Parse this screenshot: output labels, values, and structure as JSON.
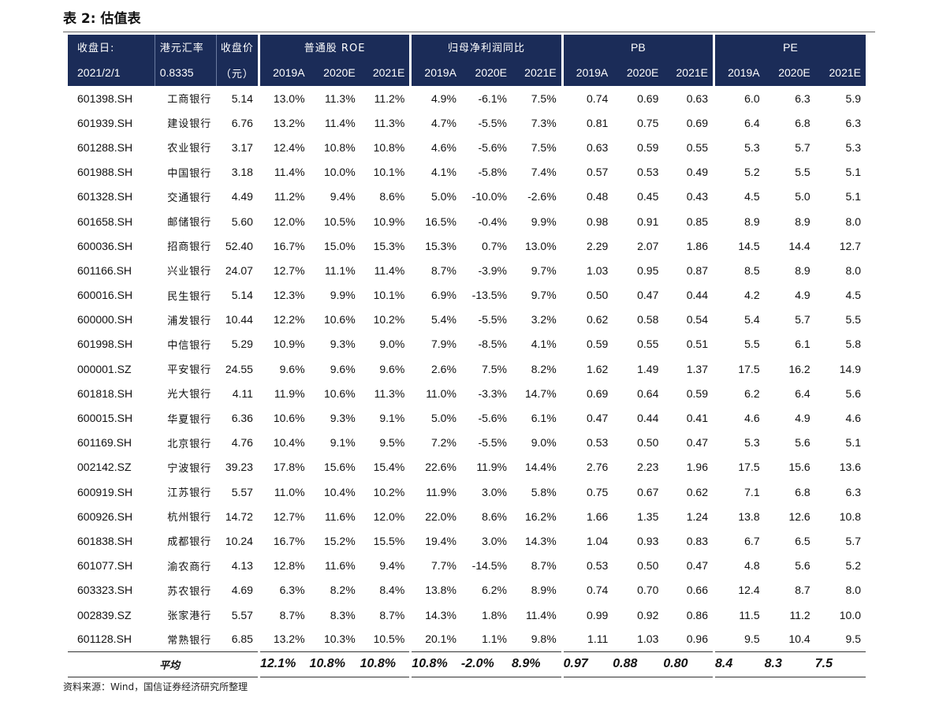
{
  "title": "表 2: 估值表",
  "header": {
    "row1": {
      "code": "收盘日:",
      "name": "港元汇率",
      "price": "收盘价",
      "roe": "普通股 ROE",
      "profit": "归母净利润同比",
      "pb": "PB",
      "pe": "PE"
    },
    "row2": {
      "date": "2021/2/1",
      "rate": "0.8335",
      "unit": "（元）",
      "years": [
        "2019A",
        "2020E",
        "2021E",
        "2019A",
        "2020E",
        "2021E",
        "2019A",
        "2020E",
        "2021E",
        "2019A",
        "2020E",
        "2021E"
      ]
    }
  },
  "rows": [
    [
      "601398.SH",
      "工商银行",
      "5.14",
      "13.0%",
      "11.3%",
      "11.2%",
      "4.9%",
      "-6.1%",
      "7.5%",
      "0.74",
      "0.69",
      "0.63",
      "6.0",
      "6.3",
      "5.9"
    ],
    [
      "601939.SH",
      "建设银行",
      "6.76",
      "13.2%",
      "11.4%",
      "11.3%",
      "4.7%",
      "-5.5%",
      "7.3%",
      "0.81",
      "0.75",
      "0.69",
      "6.4",
      "6.8",
      "6.3"
    ],
    [
      "601288.SH",
      "农业银行",
      "3.17",
      "12.4%",
      "10.8%",
      "10.8%",
      "4.6%",
      "-5.6%",
      "7.5%",
      "0.63",
      "0.59",
      "0.55",
      "5.3",
      "5.7",
      "5.3"
    ],
    [
      "601988.SH",
      "中国银行",
      "3.18",
      "11.4%",
      "10.0%",
      "10.1%",
      "4.1%",
      "-5.8%",
      "7.4%",
      "0.57",
      "0.53",
      "0.49",
      "5.2",
      "5.5",
      "5.1"
    ],
    [
      "601328.SH",
      "交通银行",
      "4.49",
      "11.2%",
      "9.4%",
      "8.6%",
      "5.0%",
      "-10.0%",
      "-2.6%",
      "0.48",
      "0.45",
      "0.43",
      "4.5",
      "5.0",
      "5.1"
    ],
    [
      "601658.SH",
      "邮储银行",
      "5.60",
      "12.0%",
      "10.5%",
      "10.9%",
      "16.5%",
      "-0.4%",
      "9.9%",
      "0.98",
      "0.91",
      "0.85",
      "8.9",
      "8.9",
      "8.0"
    ],
    [
      "600036.SH",
      "招商银行",
      "52.40",
      "16.7%",
      "15.0%",
      "15.3%",
      "15.3%",
      "0.7%",
      "13.0%",
      "2.29",
      "2.07",
      "1.86",
      "14.5",
      "14.4",
      "12.7"
    ],
    [
      "601166.SH",
      "兴业银行",
      "24.07",
      "12.7%",
      "11.1%",
      "11.4%",
      "8.7%",
      "-3.9%",
      "9.7%",
      "1.03",
      "0.95",
      "0.87",
      "8.5",
      "8.9",
      "8.0"
    ],
    [
      "600016.SH",
      "民生银行",
      "5.14",
      "12.3%",
      "9.9%",
      "10.1%",
      "6.9%",
      "-13.5%",
      "9.7%",
      "0.50",
      "0.47",
      "0.44",
      "4.2",
      "4.9",
      "4.5"
    ],
    [
      "600000.SH",
      "浦发银行",
      "10.44",
      "12.2%",
      "10.6%",
      "10.2%",
      "5.4%",
      "-5.5%",
      "3.2%",
      "0.62",
      "0.58",
      "0.54",
      "5.4",
      "5.7",
      "5.5"
    ],
    [
      "601998.SH",
      "中信银行",
      "5.29",
      "10.9%",
      "9.3%",
      "9.0%",
      "7.9%",
      "-8.5%",
      "4.1%",
      "0.59",
      "0.55",
      "0.51",
      "5.5",
      "6.1",
      "5.8"
    ],
    [
      "000001.SZ",
      "平安银行",
      "24.55",
      "9.6%",
      "9.6%",
      "9.6%",
      "2.6%",
      "7.5%",
      "8.2%",
      "1.62",
      "1.49",
      "1.37",
      "17.5",
      "16.2",
      "14.9"
    ],
    [
      "601818.SH",
      "光大银行",
      "4.11",
      "11.9%",
      "10.6%",
      "11.3%",
      "11.0%",
      "-3.3%",
      "14.7%",
      "0.69",
      "0.64",
      "0.59",
      "6.2",
      "6.4",
      "5.6"
    ],
    [
      "600015.SH",
      "华夏银行",
      "6.36",
      "10.6%",
      "9.3%",
      "9.1%",
      "5.0%",
      "-5.6%",
      "6.1%",
      "0.47",
      "0.44",
      "0.41",
      "4.6",
      "4.9",
      "4.6"
    ],
    [
      "601169.SH",
      "北京银行",
      "4.76",
      "10.4%",
      "9.1%",
      "9.5%",
      "7.2%",
      "-5.5%",
      "9.0%",
      "0.53",
      "0.50",
      "0.47",
      "5.3",
      "5.6",
      "5.1"
    ],
    [
      "002142.SZ",
      "宁波银行",
      "39.23",
      "17.8%",
      "15.6%",
      "15.4%",
      "22.6%",
      "11.9%",
      "14.4%",
      "2.76",
      "2.23",
      "1.96",
      "17.5",
      "15.6",
      "13.6"
    ],
    [
      "600919.SH",
      "江苏银行",
      "5.57",
      "11.0%",
      "10.4%",
      "10.2%",
      "11.9%",
      "3.0%",
      "5.8%",
      "0.75",
      "0.67",
      "0.62",
      "7.1",
      "6.8",
      "6.3"
    ],
    [
      "600926.SH",
      "杭州银行",
      "14.72",
      "12.7%",
      "11.6%",
      "12.0%",
      "22.0%",
      "8.6%",
      "16.2%",
      "1.66",
      "1.35",
      "1.24",
      "13.8",
      "12.6",
      "10.8"
    ],
    [
      "601838.SH",
      "成都银行",
      "10.24",
      "16.7%",
      "15.2%",
      "15.5%",
      "19.4%",
      "3.0%",
      "14.3%",
      "1.04",
      "0.93",
      "0.83",
      "6.7",
      "6.5",
      "5.7"
    ],
    [
      "601077.SH",
      "渝农商行",
      "4.13",
      "12.8%",
      "11.6%",
      "9.4%",
      "7.7%",
      "-14.5%",
      "8.7%",
      "0.53",
      "0.50",
      "0.47",
      "4.8",
      "5.6",
      "5.2"
    ],
    [
      "603323.SH",
      "苏农银行",
      "4.69",
      "6.3%",
      "8.2%",
      "8.4%",
      "13.8%",
      "6.2%",
      "8.9%",
      "0.74",
      "0.70",
      "0.66",
      "12.4",
      "8.7",
      "8.0"
    ],
    [
      "002839.SZ",
      "张家港行",
      "5.57",
      "8.7%",
      "8.3%",
      "8.7%",
      "14.3%",
      "1.8%",
      "11.4%",
      "0.99",
      "0.92",
      "0.86",
      "11.5",
      "11.2",
      "10.0"
    ],
    [
      "601128.SH",
      "常熟银行",
      "6.85",
      "13.2%",
      "10.3%",
      "10.5%",
      "20.1%",
      "1.1%",
      "9.8%",
      "1.11",
      "1.03",
      "0.96",
      "9.5",
      "10.4",
      "9.5"
    ]
  ],
  "average": {
    "label": "平均",
    "values": [
      "12.1%",
      "10.8%",
      "10.8%",
      "10.8%",
      "-2.0%",
      "8.9%",
      "0.97",
      "0.88",
      "0.80",
      "8.4",
      "8.3",
      "7.5"
    ]
  },
  "source": "资料来源：Wind，国信证券经济研究所整理"
}
